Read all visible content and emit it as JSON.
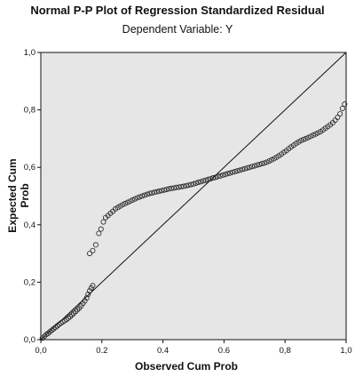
{
  "chart_data": {
    "type": "scatter",
    "title": "Normal P-P Plot of Regression Standardized Residual",
    "subtitle": "Dependent Variable: Y",
    "xlabel": "Observed Cum Prob",
    "ylabel": "Expected Cum Prob",
    "xlim": [
      0,
      1
    ],
    "ylim": [
      0,
      1
    ],
    "xticks": [
      "0,0",
      "0.2",
      "0.4",
      "0.6",
      "0,8",
      "1,0"
    ],
    "yticks": [
      "0,0",
      "0,2",
      "0,4",
      "0,6",
      "0,8",
      "1,0"
    ],
    "reference_line": [
      [
        0,
        0
      ],
      [
        1,
        1
      ]
    ],
    "plot_background": "#e6e6e6",
    "marker_color": "#222222",
    "points": [
      [
        0.005,
        0.005
      ],
      [
        0.012,
        0.012
      ],
      [
        0.018,
        0.018
      ],
      [
        0.024,
        0.022
      ],
      [
        0.03,
        0.028
      ],
      [
        0.036,
        0.033
      ],
      [
        0.042,
        0.038
      ],
      [
        0.048,
        0.043
      ],
      [
        0.054,
        0.048
      ],
      [
        0.06,
        0.053
      ],
      [
        0.066,
        0.058
      ],
      [
        0.072,
        0.062
      ],
      [
        0.078,
        0.066
      ],
      [
        0.084,
        0.07
      ],
      [
        0.09,
        0.075
      ],
      [
        0.096,
        0.08
      ],
      [
        0.102,
        0.086
      ],
      [
        0.108,
        0.092
      ],
      [
        0.114,
        0.098
      ],
      [
        0.12,
        0.104
      ],
      [
        0.126,
        0.11
      ],
      [
        0.132,
        0.118
      ],
      [
        0.138,
        0.126
      ],
      [
        0.144,
        0.135
      ],
      [
        0.15,
        0.145
      ],
      [
        0.155,
        0.158
      ],
      [
        0.16,
        0.17
      ],
      [
        0.165,
        0.18
      ],
      [
        0.17,
        0.188
      ],
      [
        0.16,
        0.3
      ],
      [
        0.17,
        0.31
      ],
      [
        0.18,
        0.33
      ],
      [
        0.19,
        0.37
      ],
      [
        0.197,
        0.385
      ],
      [
        0.205,
        0.41
      ],
      [
        0.212,
        0.425
      ],
      [
        0.22,
        0.432
      ],
      [
        0.228,
        0.44
      ],
      [
        0.236,
        0.447
      ],
      [
        0.244,
        0.455
      ],
      [
        0.252,
        0.46
      ],
      [
        0.26,
        0.465
      ],
      [
        0.268,
        0.47
      ],
      [
        0.276,
        0.474
      ],
      [
        0.284,
        0.478
      ],
      [
        0.292,
        0.482
      ],
      [
        0.3,
        0.486
      ],
      [
        0.308,
        0.49
      ],
      [
        0.316,
        0.494
      ],
      [
        0.324,
        0.497
      ],
      [
        0.332,
        0.5
      ],
      [
        0.34,
        0.503
      ],
      [
        0.348,
        0.506
      ],
      [
        0.356,
        0.509
      ],
      [
        0.364,
        0.511
      ],
      [
        0.372,
        0.513
      ],
      [
        0.38,
        0.515
      ],
      [
        0.388,
        0.517
      ],
      [
        0.396,
        0.519
      ],
      [
        0.404,
        0.521
      ],
      [
        0.412,
        0.523
      ],
      [
        0.42,
        0.525
      ],
      [
        0.428,
        0.527
      ],
      [
        0.436,
        0.528
      ],
      [
        0.444,
        0.53
      ],
      [
        0.452,
        0.531
      ],
      [
        0.46,
        0.533
      ],
      [
        0.468,
        0.534
      ],
      [
        0.476,
        0.536
      ],
      [
        0.484,
        0.538
      ],
      [
        0.492,
        0.54
      ],
      [
        0.5,
        0.542
      ],
      [
        0.508,
        0.545
      ],
      [
        0.516,
        0.548
      ],
      [
        0.524,
        0.55
      ],
      [
        0.532,
        0.553
      ],
      [
        0.54,
        0.555
      ],
      [
        0.548,
        0.558
      ],
      [
        0.556,
        0.56
      ],
      [
        0.564,
        0.563
      ],
      [
        0.572,
        0.565
      ],
      [
        0.58,
        0.568
      ],
      [
        0.588,
        0.57
      ],
      [
        0.596,
        0.573
      ],
      [
        0.604,
        0.575
      ],
      [
        0.612,
        0.578
      ],
      [
        0.62,
        0.58
      ],
      [
        0.628,
        0.583
      ],
      [
        0.636,
        0.585
      ],
      [
        0.644,
        0.588
      ],
      [
        0.652,
        0.59
      ],
      [
        0.66,
        0.593
      ],
      [
        0.668,
        0.595
      ],
      [
        0.676,
        0.598
      ],
      [
        0.684,
        0.6
      ],
      [
        0.692,
        0.603
      ],
      [
        0.7,
        0.605
      ],
      [
        0.708,
        0.608
      ],
      [
        0.716,
        0.61
      ],
      [
        0.724,
        0.613
      ],
      [
        0.732,
        0.615
      ],
      [
        0.74,
        0.618
      ],
      [
        0.748,
        0.622
      ],
      [
        0.756,
        0.626
      ],
      [
        0.764,
        0.63
      ],
      [
        0.772,
        0.635
      ],
      [
        0.78,
        0.64
      ],
      [
        0.788,
        0.646
      ],
      [
        0.796,
        0.652
      ],
      [
        0.804,
        0.658
      ],
      [
        0.812,
        0.665
      ],
      [
        0.82,
        0.671
      ],
      [
        0.828,
        0.677
      ],
      [
        0.836,
        0.683
      ],
      [
        0.844,
        0.688
      ],
      [
        0.852,
        0.693
      ],
      [
        0.86,
        0.697
      ],
      [
        0.868,
        0.7
      ],
      [
        0.876,
        0.704
      ],
      [
        0.884,
        0.708
      ],
      [
        0.892,
        0.712
      ],
      [
        0.9,
        0.716
      ],
      [
        0.908,
        0.72
      ],
      [
        0.916,
        0.724
      ],
      [
        0.924,
        0.73
      ],
      [
        0.932,
        0.736
      ],
      [
        0.94,
        0.742
      ],
      [
        0.948,
        0.748
      ],
      [
        0.956,
        0.755
      ],
      [
        0.964,
        0.764
      ],
      [
        0.972,
        0.774
      ],
      [
        0.98,
        0.786
      ],
      [
        0.988,
        0.805
      ],
      [
        0.995,
        0.82
      ]
    ]
  }
}
